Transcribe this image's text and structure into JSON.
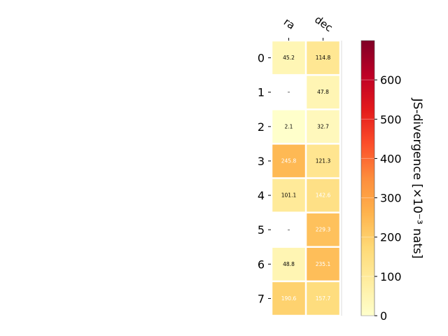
{
  "chart_data": {
    "type": "heatmap",
    "x_categories": [
      "ra",
      "dec"
    ],
    "y_categories": [
      "0",
      "1",
      "2",
      "3",
      "4",
      "5",
      "6",
      "7"
    ],
    "values": [
      [
        45.2,
        114.8
      ],
      [
        null,
        47.8
      ],
      [
        2.1,
        32.7
      ],
      [
        245.8,
        121.3
      ],
      [
        101.1,
        142.6
      ],
      [
        null,
        229.3
      ],
      [
        48.8,
        235.1
      ],
      [
        190.6,
        157.7
      ]
    ],
    "cell_labels": [
      [
        "45.2",
        "114.8"
      ],
      [
        "–",
        "47.8"
      ],
      [
        "2.1",
        "32.7"
      ],
      [
        "245.8",
        "121.3"
      ],
      [
        "101.1",
        "142.6"
      ],
      [
        "–",
        "229.3"
      ],
      [
        "48.8",
        "235.1"
      ],
      [
        "190.6",
        "157.7"
      ]
    ],
    "colorbar": {
      "label": "JS-divergence [×10⁻³ nats]",
      "range": [
        0,
        700
      ],
      "ticks": [
        "0",
        "100",
        "200",
        "300",
        "400",
        "500",
        "600"
      ],
      "colormap": "YlOrRd"
    }
  }
}
